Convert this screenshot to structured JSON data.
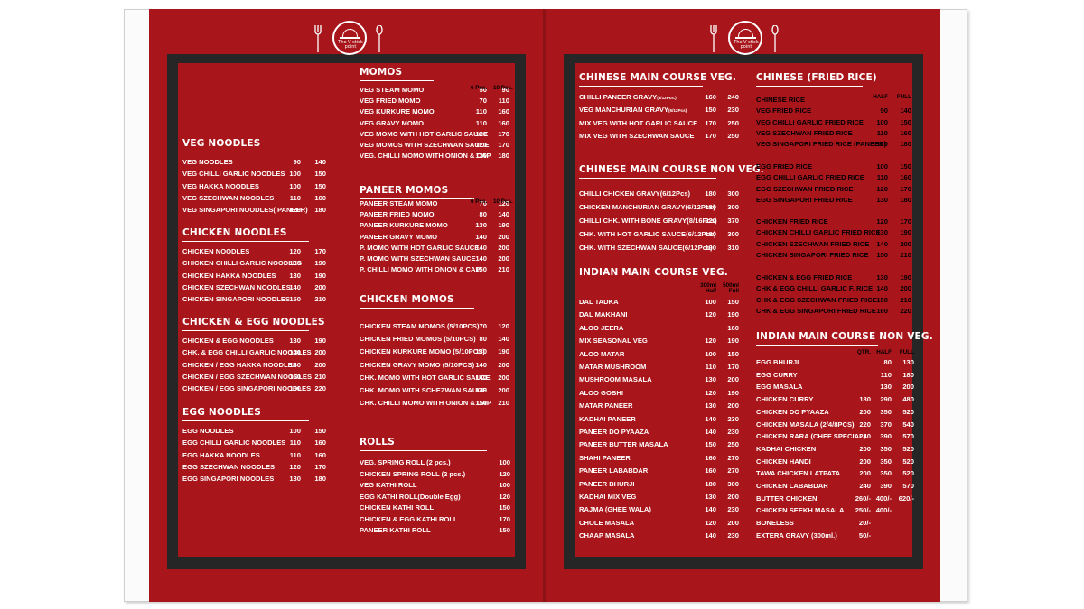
{
  "logo_text": "The V-stick point",
  "left": {
    "veg_noodles": {
      "title": "VEG NOODLES",
      "items": [
        {
          "name": "VEG NOODLES",
          "p": [
            "90",
            "140"
          ]
        },
        {
          "name": "VEG CHILLI GARLIC NOODLES",
          "p": [
            "100",
            "150"
          ]
        },
        {
          "name": "VEG HAKKA NOODLES",
          "p": [
            "100",
            "150"
          ]
        },
        {
          "name": "VEG SZECHWAN NOODLES",
          "p": [
            "110",
            "160"
          ]
        },
        {
          "name": "VEG SINGAPORI NOODLES( PANEER)",
          "p": [
            "120",
            "180"
          ]
        }
      ]
    },
    "chicken_noodles": {
      "title": "CHICKEN NOODLES",
      "items": [
        {
          "name": "CHICKEN NOODLES",
          "p": [
            "120",
            "170"
          ]
        },
        {
          "name": "CHICKEN CHILLI GARLIC NOODLES",
          "p": [
            "130",
            "190"
          ]
        },
        {
          "name": "CHICKEN HAKKA NOODLES",
          "p": [
            "130",
            "190"
          ]
        },
        {
          "name": "CHICKEN SZECHWAN NOODLES",
          "p": [
            "140",
            "200"
          ]
        },
        {
          "name": "CHICKEN SINGAPORI NOODLES",
          "p": [
            "150",
            "210"
          ]
        }
      ]
    },
    "chicken_egg_noodles": {
      "title": "CHICKEN & EGG NOODLES",
      "items": [
        {
          "name": "CHICKEN & EGG NOODLES",
          "p": [
            "130",
            "190"
          ]
        },
        {
          "name": "CHK. & EGG CHILLI GARLIC NOODLES",
          "p": [
            "140",
            "200"
          ]
        },
        {
          "name": "CHICKEN / EGG HAKKA NOODLES",
          "p": [
            "140",
            "200"
          ]
        },
        {
          "name": "CHICKEN / EGG SZECHWAN NOODLES",
          "p": [
            "150",
            "210"
          ]
        },
        {
          "name": "CHICKEN / EGG SINGAPORI NOODLES",
          "p": [
            "160",
            "220"
          ]
        }
      ]
    },
    "egg_noodles": {
      "title": "EGG NOODLES",
      "items": [
        {
          "name": "EGG NOODLES",
          "p": [
            "100",
            "150"
          ]
        },
        {
          "name": "EGG CHILLI GARLIC NOODLES",
          "p": [
            "110",
            "160"
          ]
        },
        {
          "name": "EGG HAKKA NOODLES",
          "p": [
            "110",
            "160"
          ]
        },
        {
          "name": "EGG SZECHWAN NOODLES",
          "p": [
            "120",
            "170"
          ]
        },
        {
          "name": "EGG SINGAPORI NOODLES",
          "p": [
            "130",
            "180"
          ]
        }
      ]
    },
    "momos": {
      "title": "MOMOS",
      "cols": [
        "6 Pcs.",
        "10 Pcs."
      ],
      "items": [
        {
          "name": "VEG STEAM MOMO",
          "p": [
            "50",
            "90"
          ]
        },
        {
          "name": "VEG FRIED MOMO",
          "p": [
            "70",
            "110"
          ]
        },
        {
          "name": "VEG KURKURE MOMO",
          "p": [
            "110",
            "160"
          ]
        },
        {
          "name": "VEG GRAVY MOMO",
          "p": [
            "110",
            "160"
          ]
        },
        {
          "name": "VEG MOMO WITH HOT GARLIC SAUCE",
          "p": [
            "120",
            "170"
          ]
        },
        {
          "name": "VEG MOMOS WITH SZECHWAN SAUCE",
          "p": [
            "120",
            "170"
          ]
        },
        {
          "name": "VEG. CHILLI MOMO WITH ONION & CAP.",
          "p": [
            "130",
            "180"
          ]
        }
      ]
    },
    "paneer_momos": {
      "title": "PANEER MOMOS",
      "cols": [
        "6 Pcs.",
        "10 Pcs."
      ],
      "items": [
        {
          "name": "PANEER STEAM MOMO",
          "p": [
            "70",
            "120"
          ]
        },
        {
          "name": "PANEER FRIED MOMO",
          "p": [
            "80",
            "140"
          ]
        },
        {
          "name": "PANEER KURKURE MOMO",
          "p": [
            "130",
            "190"
          ]
        },
        {
          "name": "PANEER GRAVY MOMO",
          "p": [
            "140",
            "200"
          ]
        },
        {
          "name": "P. MOMO WITH HOT GARLIC SAUCE",
          "p": [
            "140",
            "200"
          ]
        },
        {
          "name": "P. MOMO WITH SZECHWAN SAUCE",
          "p": [
            "140",
            "200"
          ]
        },
        {
          "name": "P. CHILLI MOMO WITH ONION & CAP.",
          "p": [
            "150",
            "210"
          ]
        }
      ]
    },
    "chicken_momos": {
      "title": "CHICKEN MOMOS",
      "items": [
        {
          "name": "CHICKEN STEAM MOMOS (5/10PCS)",
          "p": [
            "70",
            "120"
          ]
        },
        {
          "name": "CHICKEN FRIED MOMOS (5/10PCS)",
          "p": [
            "80",
            "140"
          ]
        },
        {
          "name": "CHICKEN KURKURE MOMO (5/10PCS)",
          "p": [
            "130",
            "190"
          ]
        },
        {
          "name": "CHICKEN GRAVY MOMO (5/10PCS)",
          "p": [
            "140",
            "200"
          ]
        },
        {
          "name": "CHK. MOMO WITH HOT GARLIC SAUCE",
          "p": [
            "140",
            "200"
          ]
        },
        {
          "name": "CHK. MOMO WITH SCHEZWAN SAUCE",
          "p": [
            "140",
            "200"
          ]
        },
        {
          "name": "CHK. CHILLI MOMO WITH ONION & CAP",
          "p": [
            "150",
            "210"
          ]
        }
      ]
    },
    "rolls": {
      "title": "ROLLS",
      "items": [
        {
          "name": "VEG. SPRING ROLL  (2 pcs.)",
          "p": [
            "100"
          ]
        },
        {
          "name": "CHICKEN SPRING ROLL  (2 pcs.)",
          "p": [
            "120"
          ]
        },
        {
          "name": "VEG KATHI ROLL",
          "p": [
            "100"
          ]
        },
        {
          "name": "EGG KATHI ROLL(Double Egg)",
          "p": [
            "120"
          ]
        },
        {
          "name": "CHICKEN KATHI ROLL",
          "p": [
            "150"
          ]
        },
        {
          "name": "CHICKEN & EGG KATHI ROLL",
          "p": [
            "170"
          ]
        },
        {
          "name": "PANEER KATHI ROLL",
          "p": [
            "150"
          ]
        }
      ]
    }
  },
  "right": {
    "chinese_main_veg": {
      "title": "CHINESE MAIN COURSE VEG.",
      "items": [
        {
          "name": "CHILLI PANEER GRAVY",
          "sub": "(6/12Pcs.)",
          "p": [
            "160",
            "240"
          ]
        },
        {
          "name": "VEG MANCHURIAN GRAVY",
          "sub": "(6/12Pcs)",
          "p": [
            "150",
            "230"
          ]
        },
        {
          "name": "MIX VEG WITH HOT GARLIC SAUCE",
          "sub": "",
          "p": [
            "170",
            "250"
          ]
        },
        {
          "name": "MIX VEG WITH SZECHWAN SAUCE",
          "sub": "",
          "p": [
            "170",
            "250"
          ]
        }
      ]
    },
    "chinese_main_nonveg": {
      "title": "CHINESE MAIN COURSE NON VEG.",
      "items": [
        {
          "name": "CHILLI CHICKEN GRAVY(6/12Pcs)",
          "p": [
            "180",
            "300"
          ]
        },
        {
          "name": "CHICKEN MANCHURIAN GRAVY(6/12Pcs)",
          "p": [
            "180",
            "300"
          ]
        },
        {
          "name": "CHILLI CHK. WITH BONE GRAVY(8/16Pcs)",
          "p": [
            "220",
            "370"
          ]
        },
        {
          "name": "CHK. WITH HOT GARLIC SAUCE(6/12Pcs)",
          "p": [
            "180",
            "300"
          ]
        },
        {
          "name": "CHK. WITH SZECHWAN SAUCE(6/12Pcs)",
          "p": [
            "190",
            "310"
          ]
        }
      ]
    },
    "indian_main_veg": {
      "title": "INDIAN MAIN COURSE VEG.",
      "cols": [
        "300ml",
        "500ml"
      ],
      "cols2": [
        "Half",
        "Full"
      ],
      "items": [
        {
          "name": "DAL TADKA",
          "p": [
            "100",
            "150"
          ]
        },
        {
          "name": "DAL MAKHANI",
          "p": [
            "120",
            "190"
          ]
        },
        {
          "name": "ALOO JEERA",
          "p": [
            "",
            "160"
          ]
        },
        {
          "name": "MIX SEASONAL VEG",
          "p": [
            "120",
            "190"
          ]
        },
        {
          "name": "ALOO MATAR",
          "p": [
            "100",
            "150"
          ]
        },
        {
          "name": "MATAR MUSHROOM",
          "p": [
            "110",
            "170"
          ]
        },
        {
          "name": "MUSHROOM MASALA",
          "p": [
            "130",
            "200"
          ]
        },
        {
          "name": "ALOO GOBHI",
          "p": [
            "120",
            "190"
          ]
        },
        {
          "name": "MATAR PANEER",
          "p": [
            "130",
            "200"
          ]
        },
        {
          "name": "KADHAI PANEER",
          "p": [
            "140",
            "230"
          ]
        },
        {
          "name": "PANEER DO PYAAZA",
          "p": [
            "140",
            "230"
          ]
        },
        {
          "name": "PANEER BUTTER MASALA",
          "p": [
            "150",
            "250"
          ]
        },
        {
          "name": "SHAHI PANEER",
          "p": [
            "160",
            "270"
          ]
        },
        {
          "name": "PANEER LABABDAR",
          "p": [
            "160",
            "270"
          ]
        },
        {
          "name": "PANEER BHURJI",
          "p": [
            "180",
            "300"
          ]
        },
        {
          "name": "KADHAI MIX VEG",
          "p": [
            "130",
            "200"
          ]
        },
        {
          "name": "RAJMA (GHEE WALA)",
          "p": [
            "140",
            "230"
          ]
        },
        {
          "name": "CHOLE MASALA",
          "p": [
            "120",
            "200"
          ]
        },
        {
          "name": "CHAAP MASALA",
          "p": [
            "140",
            "230"
          ]
        }
      ]
    },
    "chinese_fried_rice": {
      "title": "CHINESE (FRIED RICE)",
      "cols": [
        "HALF",
        "FULL"
      ],
      "groups": [
        [
          {
            "name": "CHINESE RICE",
            "p": [
              "",
              ""
            ]
          },
          {
            "name": "VEG FRIED RICE",
            "p": [
              "90",
              "140"
            ]
          },
          {
            "name": "VEG CHILLI GARLIC FRIED RICE",
            "p": [
              "100",
              "150"
            ]
          },
          {
            "name": "VEG SZECHWAN FRIED RICE",
            "p": [
              "110",
              "160"
            ]
          },
          {
            "name": "VEG SINGAPORI FRIED RICE (PANEER)",
            "p": [
              "120",
              "180"
            ]
          }
        ],
        [
          {
            "name": "EGG FRIED RICE",
            "p": [
              "100",
              "150"
            ]
          },
          {
            "name": "EGG CHILLI GARLIC FRIED RICE",
            "p": [
              "110",
              "160"
            ]
          },
          {
            "name": "EGG SZECHWAN FRIED RICE",
            "p": [
              "120",
              "170"
            ]
          },
          {
            "name": "EGG SINGAPORI FRIED RICE",
            "p": [
              "130",
              "180"
            ]
          }
        ],
        [
          {
            "name": "CHICKEN FRIED RICE",
            "p": [
              "120",
              "170"
            ]
          },
          {
            "name": "CHICKEN CHILLI GARLIC FRIED RICE",
            "p": [
              "130",
              "190"
            ]
          },
          {
            "name": "CHICKEN SZECHWAN FRIED RICE",
            "p": [
              "140",
              "200"
            ]
          },
          {
            "name": "CHICKEN SINGAPORI FRIED RICE",
            "p": [
              "150",
              "210"
            ]
          }
        ],
        [
          {
            "name": "CHICKEN & EGG FRIED RICE",
            "p": [
              "130",
              "190"
            ]
          },
          {
            "name": "CHK & EGG CHILLI GARLIC F.  RICE",
            "p": [
              "140",
              "200"
            ]
          },
          {
            "name": "CHK & EGG SZECHWAN FRIED RICE",
            "p": [
              "150",
              "210"
            ]
          },
          {
            "name": "CHK & EGG SINGAPORI FRIED RICE",
            "p": [
              "160",
              "220"
            ]
          }
        ]
      ]
    },
    "indian_main_nonveg": {
      "title": "INDIAN MAIN COURSE NON VEG.",
      "cols": [
        "QTR.",
        "HALF",
        "FULL"
      ],
      "items": [
        {
          "name": "EGG BHURJI",
          "p": [
            "",
            "80",
            "130"
          ]
        },
        {
          "name": "EGG CURRY",
          "p": [
            "",
            "110",
            "180"
          ]
        },
        {
          "name": "EGG MASALA",
          "p": [
            "",
            "130",
            "200"
          ]
        },
        {
          "name": "CHICKEN CURRY",
          "p": [
            "180",
            "290",
            "480"
          ]
        },
        {
          "name": "CHICKEN DO PYAAZA",
          "p": [
            "200",
            "350",
            "520"
          ]
        },
        {
          "name": "CHICKEN MASALA (2/4/8PCS)",
          "p": [
            "220",
            "370",
            "540"
          ]
        },
        {
          "name": "CHICKEN RARA (CHEF SPECIAL)",
          "p": [
            "240",
            "390",
            "570"
          ]
        },
        {
          "name": "KADHAI CHICKEN",
          "p": [
            "200",
            "350",
            "520"
          ]
        },
        {
          "name": "CHICKEN HANDI",
          "p": [
            "200",
            "350",
            "520"
          ]
        },
        {
          "name": "TAWA CHICKEN LATPATA",
          "p": [
            "200",
            "350",
            "520"
          ]
        },
        {
          "name": "CHICKEN LABABDAR",
          "p": [
            "240",
            "390",
            "570"
          ]
        },
        {
          "name": "BUTTER CHICKEN",
          "p": [
            "260/-",
            "400/-",
            "620/-"
          ]
        },
        {
          "name": "CHICKEN SEEKH MASALA",
          "p": [
            "250/-",
            "400/-",
            ""
          ]
        },
        {
          "name": "BONELESS",
          "p": [
            "20/-",
            "",
            ""
          ]
        },
        {
          "name": "EXTERA GRAVY (300ml.)",
          "p": [
            "50/-",
            "",
            ""
          ]
        }
      ]
    }
  }
}
